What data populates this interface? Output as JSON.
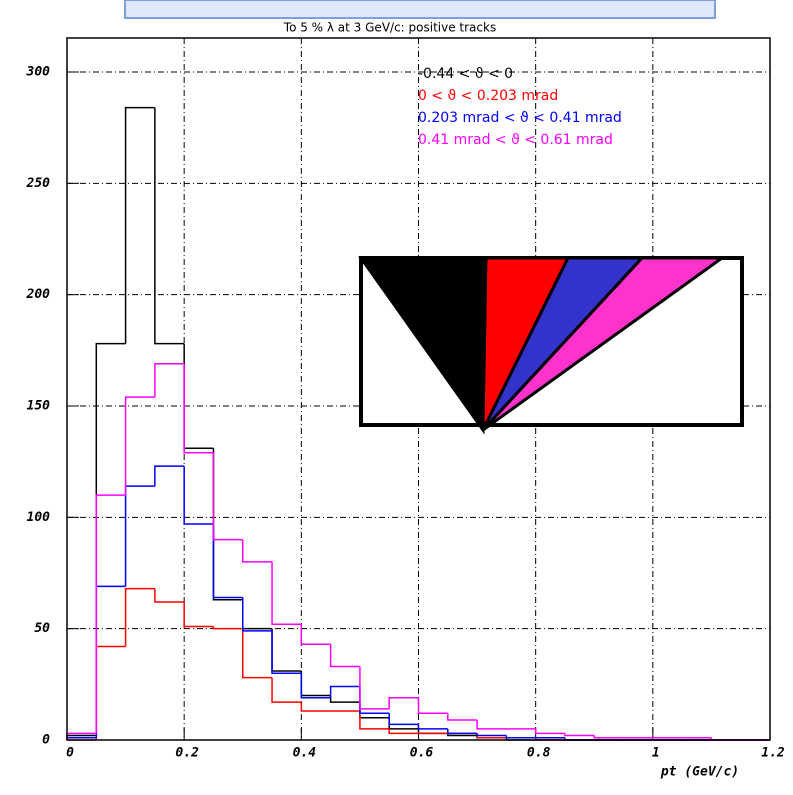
{
  "chart_data": {
    "type": "histogram",
    "title": "To 5 % λ at 3 GeV/c: positive tracks",
    "x_label": "pt  (GeV/c)",
    "bins": [
      0,
      0.05,
      0.1,
      0.15,
      0.2,
      0.25,
      0.3,
      0.35,
      0.4,
      0.45,
      0.5,
      0.55,
      0.6,
      0.65,
      0.7,
      0.75,
      0.8,
      0.85,
      0.9,
      0.95,
      1,
      1.05,
      1.1,
      1.15,
      1.2
    ],
    "series": [
      {
        "name": "-0.44 < ϑ < 0",
        "color": "#000000",
        "values": [
          2,
          178,
          284,
          178,
          131,
          63,
          50,
          31,
          20,
          17,
          10,
          5,
          3,
          2,
          1,
          0,
          0,
          0,
          0,
          0,
          0,
          0,
          0,
          0
        ]
      },
      {
        "name": "0 < ϑ < 0.203 mrad",
        "color": "#ff0000",
        "values": [
          0,
          42,
          68,
          62,
          51,
          50,
          28,
          17,
          13,
          13,
          5,
          3,
          3,
          3,
          1,
          1,
          0,
          0,
          0,
          0,
          0,
          0,
          0,
          0
        ]
      },
      {
        "name": "0.203 mrad < ϑ < 0.41 mrad",
        "color": "#0000ff",
        "values": [
          1,
          69,
          114,
          123,
          97,
          64,
          49,
          30,
          19,
          24,
          12,
          7,
          5,
          3,
          2,
          1,
          1,
          0,
          0,
          0,
          0,
          0,
          0,
          0
        ]
      },
      {
        "name": "0.41 mrad < ϑ < 0.61 mrad",
        "color": "#ff00ff",
        "values": [
          3,
          110,
          154,
          169,
          129,
          90,
          80,
          52,
          43,
          33,
          14,
          19,
          12,
          9,
          5,
          5,
          3,
          2,
          1,
          1,
          1,
          1,
          0,
          0
        ]
      }
    ],
    "xlim": [
      0,
      1.2
    ],
    "xticks": [
      0,
      0.2,
      0.4,
      0.6,
      0.8,
      1,
      1.2
    ],
    "ylim": [
      0,
      300
    ],
    "yticks": [
      0,
      50,
      100,
      150,
      200,
      250,
      300
    ],
    "grid": true
  }
}
